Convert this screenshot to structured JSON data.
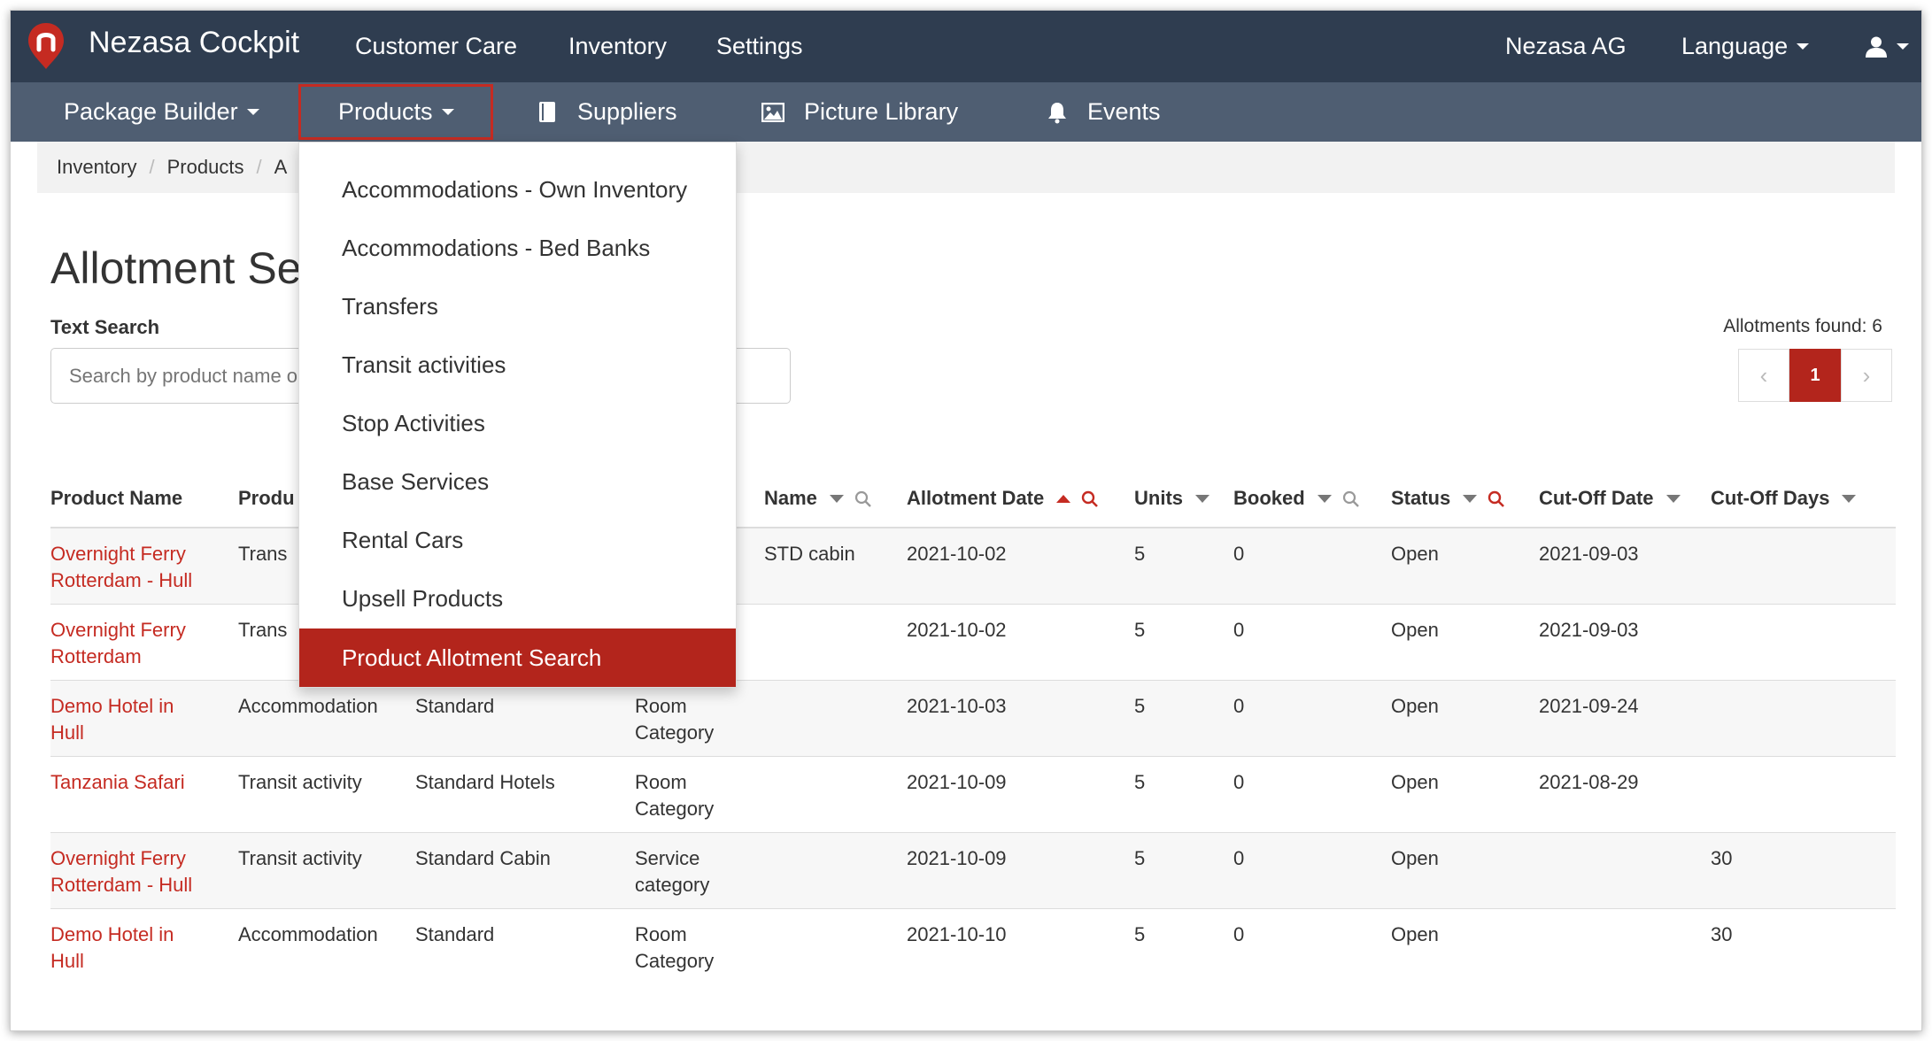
{
  "app": {
    "brand": "Nezasa Cockpit",
    "top_nav": [
      "Customer Care",
      "Inventory",
      "Settings"
    ],
    "company": "Nezasa AG",
    "language": "Language",
    "user_icon": "user-icon"
  },
  "subnav": {
    "package_builder": "Package Builder",
    "products": "Products",
    "suppliers": "Suppliers",
    "picture_library": "Picture Library",
    "events": "Events"
  },
  "breadcrumb": [
    "Inventory",
    "Products",
    "A"
  ],
  "page": {
    "title": "Allotment Se",
    "text_search_label": "Text Search",
    "search_placeholder": "Search by product name o",
    "found": "Allotments found: 6",
    "current_page": "1"
  },
  "dropdown": {
    "items": [
      "Accommodations - Own Inventory",
      "Accommodations - Bed Banks",
      "Transfers",
      "Transit activities",
      "Stop Activities",
      "Base Services",
      "Rental Cars",
      "Upsell Products",
      "Product Allotment Search"
    ],
    "selected": "Product Allotment Search"
  },
  "table": {
    "headers": {
      "product_name": "Product Name",
      "product_type": "Produ",
      "name": "Name",
      "allotment_date": "Allotment Date",
      "units": "Units",
      "booked": "Booked",
      "status": "Status",
      "cutoff_date": "Cut-Off Date",
      "cutoff_days": "Cut-Off Days"
    },
    "rows": [
      {
        "product": [
          "Overnight Ferry",
          "Rotterdam - Hull"
        ],
        "type": "Trans",
        "variant": "",
        "category": [],
        "name": "STD cabin",
        "date": "2021-10-02",
        "units": "5",
        "booked": "0",
        "status": "Open",
        "cutoff_date": "2021-09-03",
        "cutoff_days": ""
      },
      {
        "product": [
          "Overnight Ferry",
          "Rotterdam"
        ],
        "type": "Trans",
        "variant": "",
        "category": [],
        "name": "",
        "date": "2021-10-02",
        "units": "5",
        "booked": "0",
        "status": "Open",
        "cutoff_date": "2021-09-03",
        "cutoff_days": ""
      },
      {
        "product": [
          "Demo Hotel in",
          "Hull"
        ],
        "type": "Accommodation",
        "variant": "Standard",
        "category": [
          "Room",
          "Category"
        ],
        "name": "",
        "date": "2021-10-03",
        "units": "5",
        "booked": "0",
        "status": "Open",
        "cutoff_date": "2021-09-24",
        "cutoff_days": ""
      },
      {
        "product": [
          "Tanzania Safari",
          ""
        ],
        "type": "Transit activity",
        "variant": "Standard Hotels",
        "category": [
          "Room",
          "Category"
        ],
        "name": "",
        "date": "2021-10-09",
        "units": "5",
        "booked": "0",
        "status": "Open",
        "cutoff_date": "2021-08-29",
        "cutoff_days": ""
      },
      {
        "product": [
          "Overnight Ferry",
          "Rotterdam - Hull"
        ],
        "type": "Transit activity",
        "variant": "Standard Cabin",
        "category": [
          "Service",
          "category"
        ],
        "name": "",
        "date": "2021-10-09",
        "units": "5",
        "booked": "0",
        "status": "Open",
        "cutoff_date": "",
        "cutoff_days": "30"
      },
      {
        "product": [
          "Demo Hotel in",
          "Hull"
        ],
        "type": "Accommodation",
        "variant": "Standard",
        "category": [
          "Room",
          "Category"
        ],
        "name": "",
        "date": "2021-10-10",
        "units": "5",
        "booked": "0",
        "status": "Open",
        "cutoff_date": "",
        "cutoff_days": "30"
      }
    ]
  },
  "colors": {
    "topbar": "#2f3d50",
    "subbar": "#4f5e72",
    "accent": "#b3251c",
    "link": "#c52b22"
  }
}
